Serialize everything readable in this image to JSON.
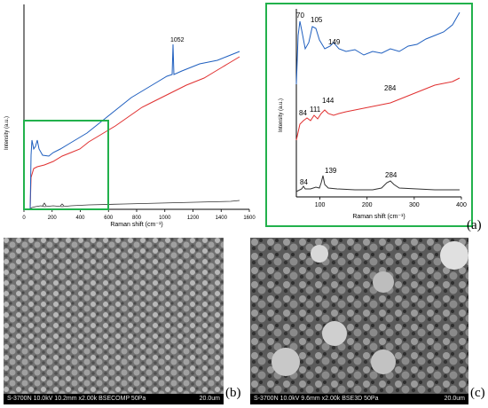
{
  "chart_data": [
    {
      "type": "line",
      "title": "",
      "xlabel": "Raman shift (cm⁻¹)",
      "ylabel": "Intensity (a.u.)",
      "xlim": [
        0,
        1600
      ],
      "x_ticks": [
        "0",
        "200",
        "400",
        "600",
        "800",
        "1000",
        "1200",
        "1400",
        "1600"
      ],
      "annotations": [
        "1052"
      ],
      "series": [
        {
          "color": "#1f5fbf",
          "x": [
            60,
            70,
            85,
            105,
            130,
            200,
            400,
            600,
            800,
            1000,
            1040,
            1052,
            1060,
            1100,
            1200,
            1300,
            1400,
            1480,
            1530
          ],
          "y": [
            0.3,
            0.55,
            0.4,
            0.52,
            0.38,
            0.4,
            0.46,
            0.53,
            0.6,
            0.7,
            0.71,
            0.95,
            0.72,
            0.74,
            0.78,
            0.81,
            0.84,
            0.87,
            0.88
          ]
        },
        {
          "color": "#e03030",
          "x": [
            60,
            100,
            200,
            400,
            600,
            800,
            1000,
            1200,
            1400,
            1530
          ],
          "y": [
            0.25,
            0.32,
            0.36,
            0.42,
            0.49,
            0.57,
            0.65,
            0.73,
            0.8,
            0.86
          ]
        },
        {
          "color": "#333333",
          "x": [
            60,
            84,
            139,
            160,
            284,
            400,
            800,
            1200,
            1530
          ],
          "y": [
            0.02,
            0.025,
            0.035,
            0.02,
            0.03,
            0.022,
            0.026,
            0.03,
            0.035
          ]
        }
      ]
    },
    {
      "type": "line",
      "title": "",
      "xlabel": "Raman shift (cm⁻¹)",
      "ylabel": "Intensity (a.u.)",
      "xlim": [
        50,
        400
      ],
      "x_ticks": [
        "100",
        "200",
        "300",
        "400"
      ],
      "peak_labels": [
        "70",
        "105",
        "149",
        "84",
        "111",
        "144",
        "284",
        "84",
        "139",
        "284"
      ],
      "series": [
        {
          "color": "#1f5fbf",
          "peaks": [
            70,
            105,
            149
          ]
        },
        {
          "color": "#e03030",
          "peaks": [
            84,
            111,
            144,
            284
          ]
        },
        {
          "color": "#333333",
          "peaks": [
            84,
            139,
            284
          ]
        }
      ]
    }
  ],
  "panels": {
    "a": "(a)",
    "b": "(b)",
    "c": "(c)"
  },
  "sem_b": {
    "info": "S-3700N 10.0kV 10.2mm x2.00k BSECOMP 50Pa",
    "scale": "20.0um"
  },
  "sem_c": {
    "info": "S-3700N 10.0kV 9.6mm x2.00k BSE3D 50Pa",
    "scale": "20.0um"
  },
  "colors": {
    "zoom_box": "#22b14c",
    "blue": "#1f5fbf",
    "red": "#e03030",
    "black": "#333333"
  }
}
